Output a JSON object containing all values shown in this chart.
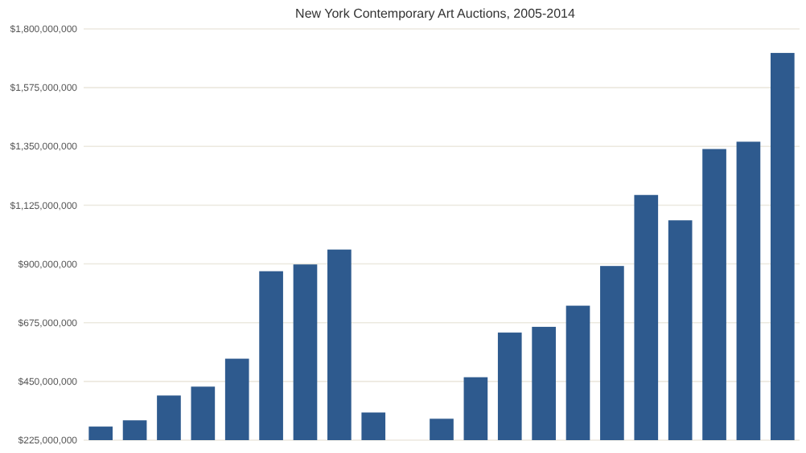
{
  "chart_data": {
    "type": "bar",
    "title": "New York Contemporary Art Auctions, 2005-2014",
    "categories": [
      null,
      null,
      null,
      null,
      null,
      null,
      null,
      null,
      null,
      null,
      null,
      null,
      null,
      null,
      null,
      null,
      null,
      null,
      null,
      null,
      null
    ],
    "values": [
      277000000,
      301000000,
      396000000,
      430000000,
      537000000,
      872000000,
      898000000,
      955000000,
      331000000,
      null,
      307000000,
      466000000,
      637000000,
      659000000,
      740000000,
      892000000,
      1164000000,
      1067000000,
      1340000000,
      1368000000,
      1708000000
    ],
    "color": "#2e5a8e",
    "ylim": [
      225000000,
      1800000000
    ],
    "yticks": [
      {
        "value": 225000000,
        "label": "$225,000,000"
      },
      {
        "value": 450000000,
        "label": "$450,000,000"
      },
      {
        "value": 675000000,
        "label": "$675,000,000"
      },
      {
        "value": 900000000,
        "label": "$900,000,000"
      },
      {
        "value": 1125000000,
        "label": "$1,125,000,000"
      },
      {
        "value": 1350000000,
        "label": "$1,350,000,000"
      },
      {
        "value": 1575000000,
        "label": "$1,575,000,000"
      },
      {
        "value": 1800000000,
        "label": "$1,800,000,000"
      }
    ],
    "grid": true,
    "tick_labels": "y"
  }
}
